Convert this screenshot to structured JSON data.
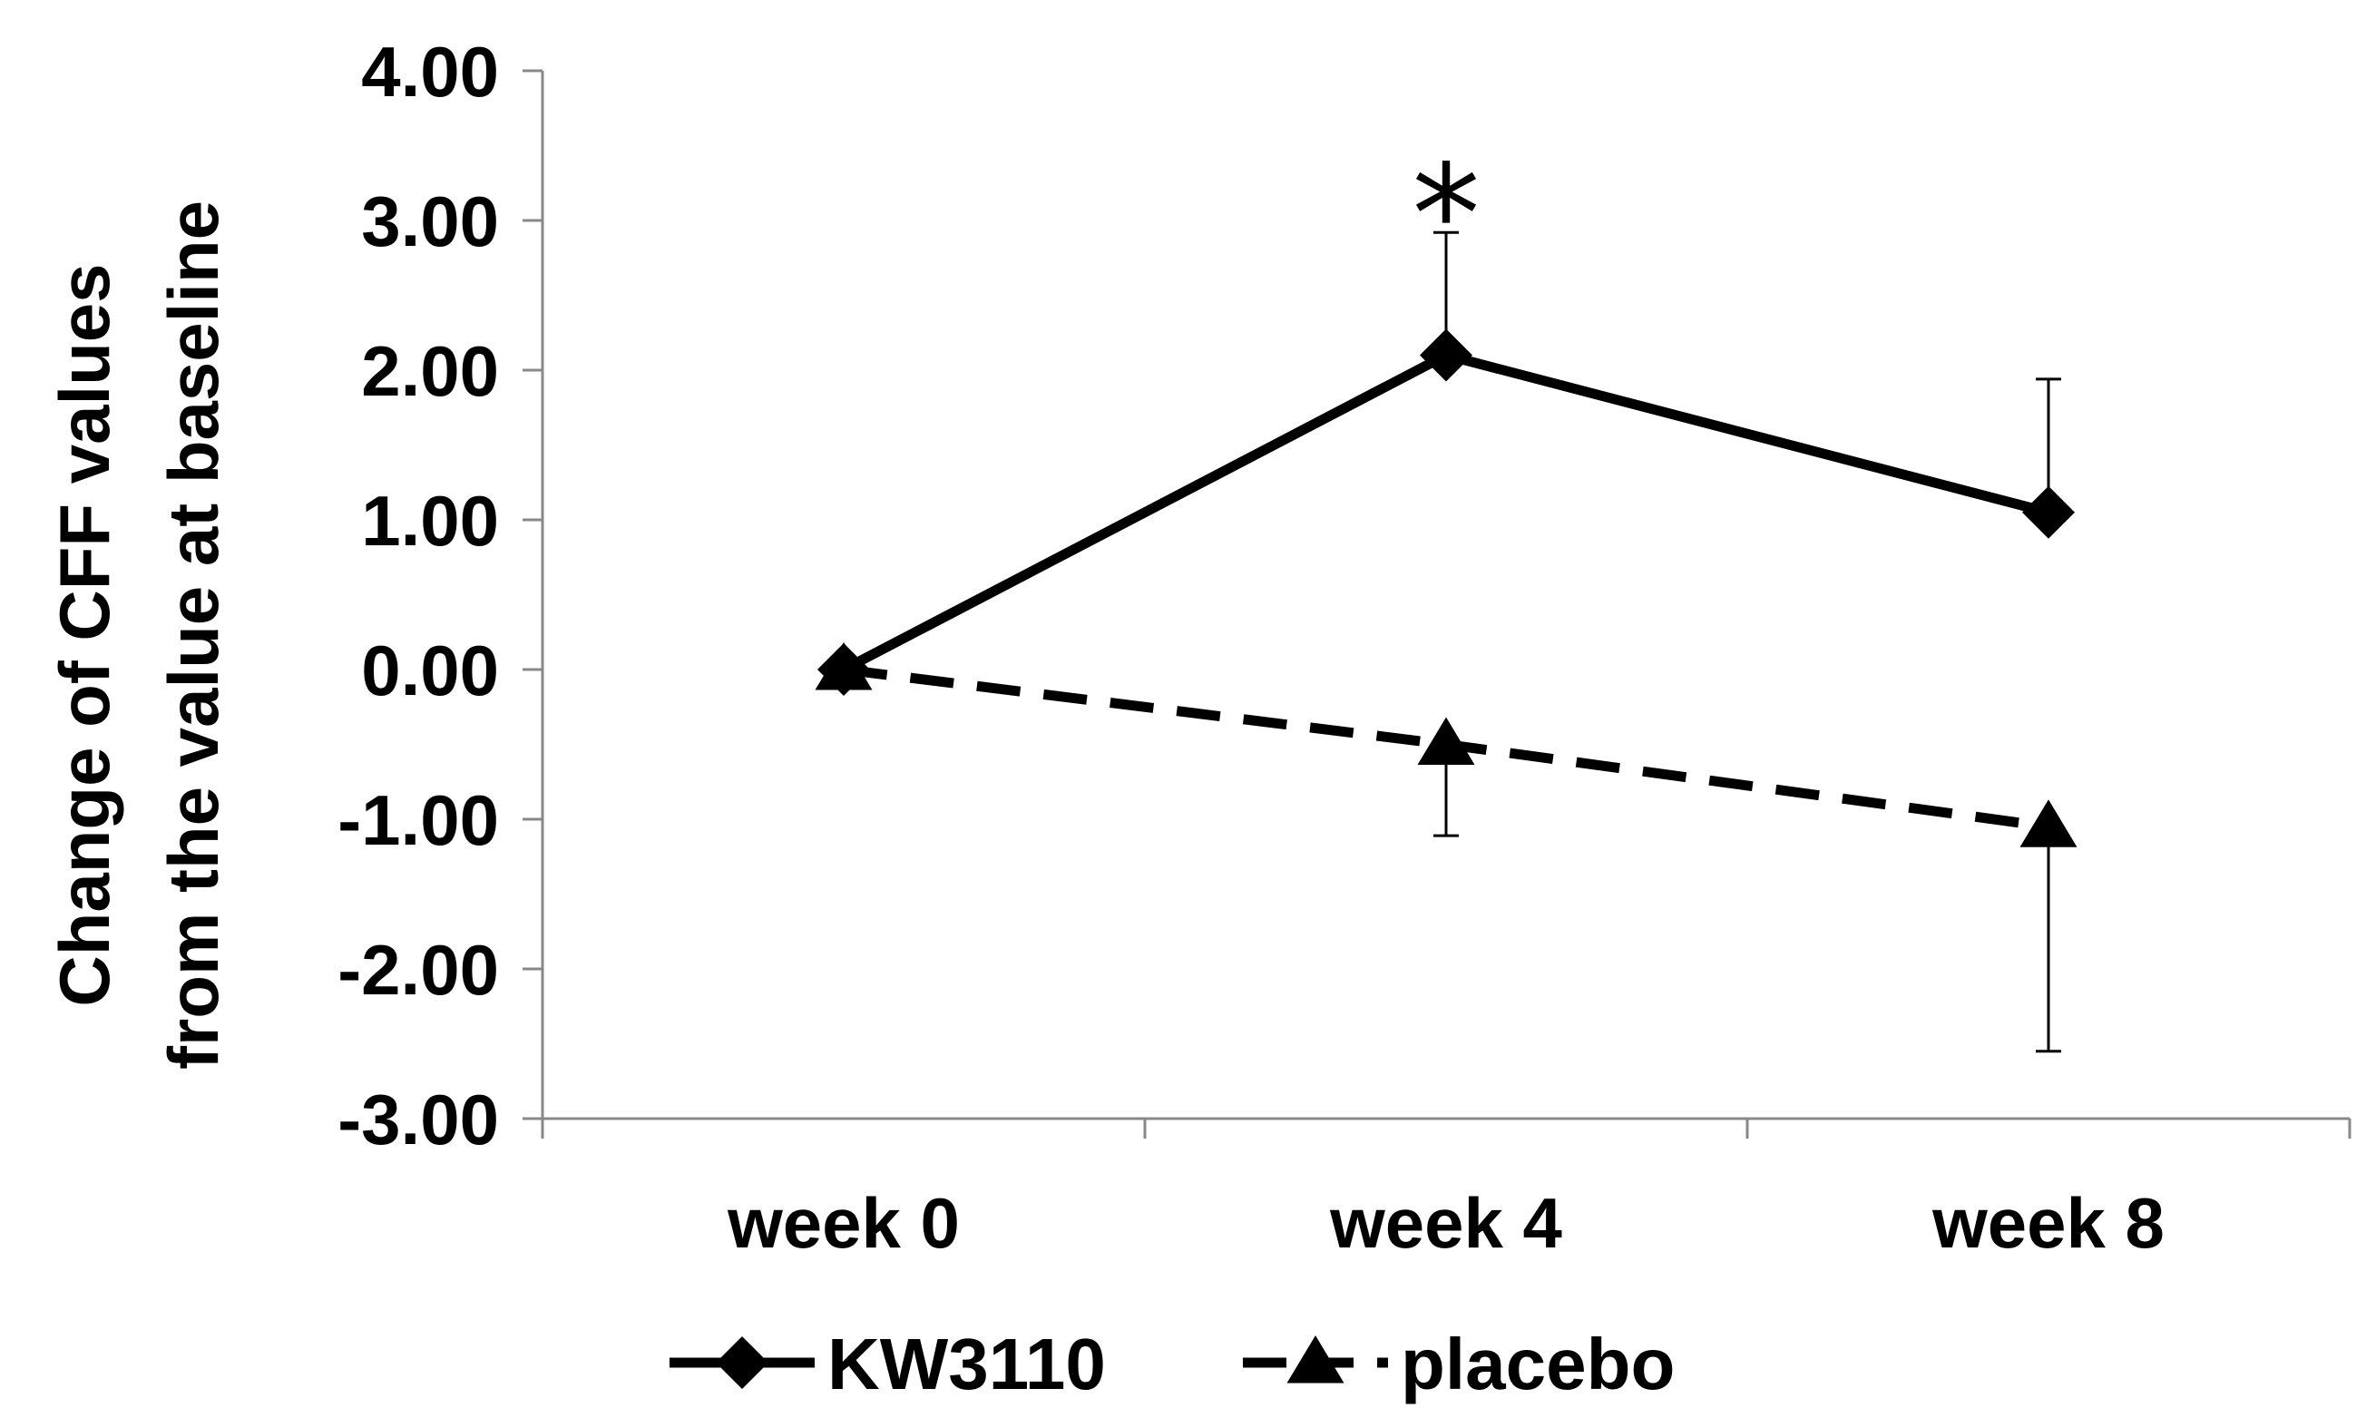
{
  "chart_data": {
    "type": "line",
    "title": "",
    "xlabel": "",
    "ylabel_lines": [
      "Change of CFF values",
      "from the value at baseline"
    ],
    "categories": [
      "week 0",
      "week 4",
      "week 8"
    ],
    "ylim": [
      -3.0,
      4.0
    ],
    "yticks": [
      4.0,
      3.0,
      2.0,
      1.0,
      0.0,
      -1.0,
      -2.0,
      -3.0
    ],
    "ytick_labels": [
      "4.00",
      "3.00",
      "2.00",
      "1.00",
      "0.00",
      "-1.00",
      "-2.00",
      "-3.00"
    ],
    "grid": false,
    "legend_position": "bottom",
    "series": [
      {
        "name": "KW3110",
        "values": [
          0.0,
          2.1,
          1.05
        ],
        "error_up": [
          0.0,
          0.82,
          0.89
        ],
        "error_down": [
          0.0,
          0.0,
          0.0
        ],
        "line_style": "solid",
        "marker": "diamond",
        "color": "#000000"
      },
      {
        "name": "placebo",
        "values": [
          0.0,
          -0.5,
          -1.05
        ],
        "error_up": [
          0.0,
          0.0,
          0.0
        ],
        "error_down": [
          0.0,
          0.61,
          1.5
        ],
        "line_style": "dashed",
        "marker": "triangle",
        "color": "#000000"
      }
    ],
    "annotations": [
      {
        "text": "*",
        "category": "week 4",
        "y": 3.3
      }
    ]
  }
}
